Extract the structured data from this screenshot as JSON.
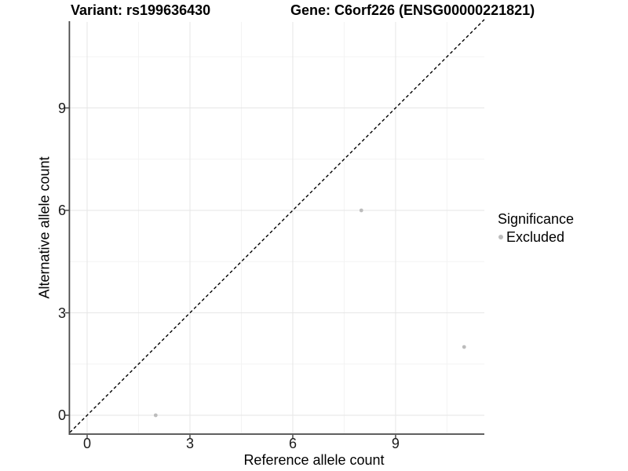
{
  "header": {
    "variant_title": "Variant: rs199636430",
    "gene_title": "Gene: C6orf226 (ENSG00000221821)"
  },
  "chart_data": {
    "type": "scatter",
    "title": "Variant: rs199636430    Gene: C6orf226 (ENSG00000221821)",
    "xlabel": "Reference allele count",
    "ylabel": "Alternative allele count",
    "x_ticks": [
      0,
      3,
      6,
      9
    ],
    "y_ticks": [
      0,
      3,
      6,
      9
    ],
    "minor_breaks": [
      1.5,
      4.5,
      7.5,
      10.5
    ],
    "xlim": [
      -0.55,
      11.55
    ],
    "ylim": [
      -0.55,
      11.55
    ],
    "grid": true,
    "points": [
      {
        "x": 2,
        "y": 0,
        "significance": "Excluded"
      },
      {
        "x": 8,
        "y": 6,
        "significance": "Excluded"
      },
      {
        "x": 11,
        "y": 2,
        "significance": "Excluded"
      }
    ],
    "identity_line": {
      "slope": 1,
      "intercept": 0,
      "style": "dashed",
      "color": "#000000"
    },
    "legend": {
      "title": "Significance",
      "position": "right",
      "items": [
        {
          "label": "Excluded",
          "color": "#bcbcbc"
        }
      ]
    },
    "colors": {
      "point": "#bcbcbc",
      "grid_major": "#e6e6e6",
      "grid_minor": "#f3f3f3",
      "axis": "#4a4a4a",
      "tick_text": "#1a1a1a"
    }
  }
}
